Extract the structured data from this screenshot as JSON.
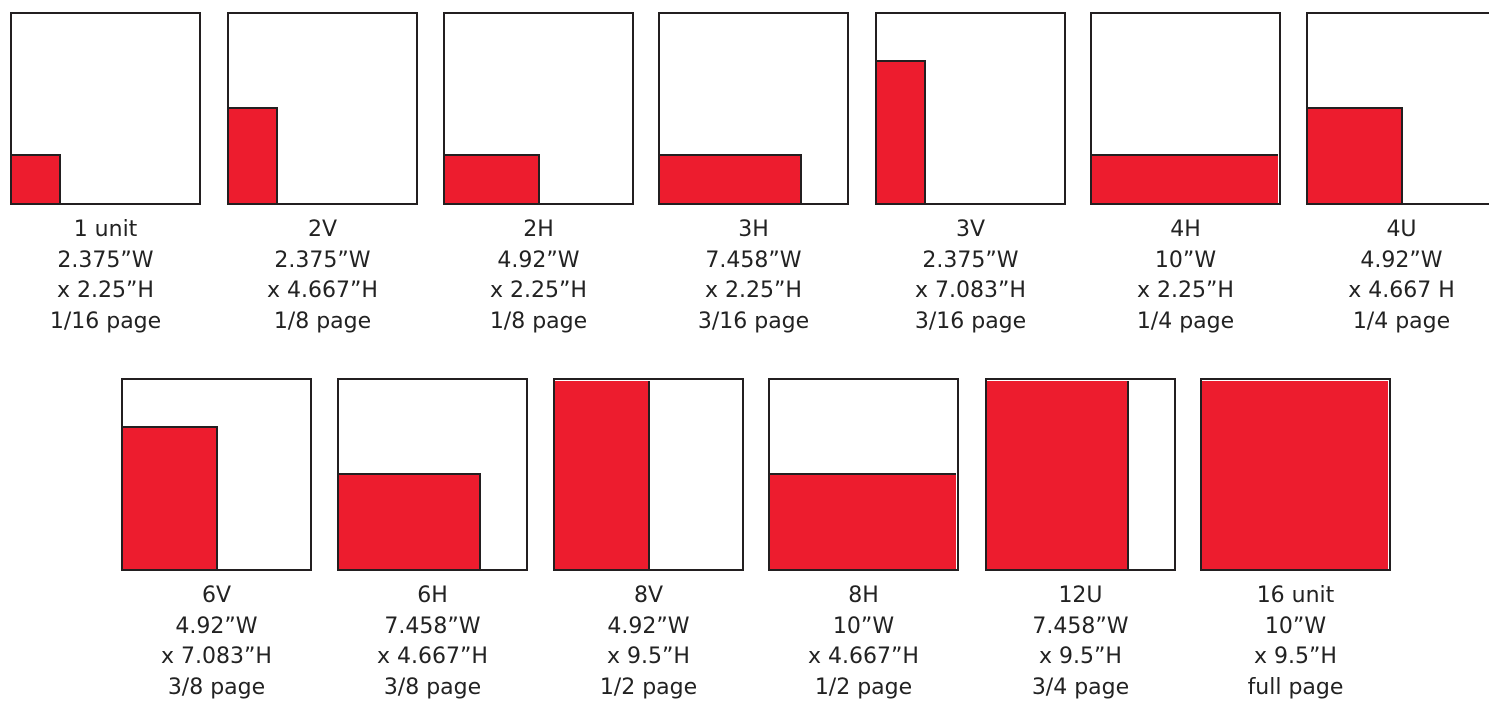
{
  "accent_color": "#ed1c2e",
  "rows": [
    [
      {
        "code": "1 unit",
        "width": "2.375”W",
        "height": "x 2.25”H",
        "fraction": "1/16 page",
        "ad_width_fraction": 0.25,
        "ad_height_fraction": 0.25
      },
      {
        "code": "2V",
        "width": "2.375”W",
        "height": "x 4.667”H",
        "fraction": "1/8 page",
        "ad_width_fraction": 0.25,
        "ad_height_fraction": 0.5
      },
      {
        "code": "2H",
        "width": "4.92”W",
        "height": "x  2.25”H",
        "fraction": "1/8 page",
        "ad_width_fraction": 0.5,
        "ad_height_fraction": 0.25
      },
      {
        "code": "3H",
        "width": "7.458”W",
        "height": "x  2.25”H",
        "fraction": "3/16 page",
        "ad_width_fraction": 0.75,
        "ad_height_fraction": 0.25
      },
      {
        "code": "3V",
        "width": "2.375”W",
        "height": "x  7.083”H",
        "fraction": "3/16 page",
        "ad_width_fraction": 0.25,
        "ad_height_fraction": 0.75
      },
      {
        "code": "4H",
        "width": "10”W",
        "height": "x  2.25”H",
        "fraction": "1/4 page",
        "ad_width_fraction": 1.0,
        "ad_height_fraction": 0.25
      },
      {
        "code": "4U",
        "width": "4.92”W",
        "height": "x 4.667 H",
        "fraction": "1/4 page",
        "ad_width_fraction": 0.5,
        "ad_height_fraction": 0.5
      }
    ],
    [
      {
        "code": "6V",
        "width": "4.92”W",
        "height": "x 7.083”H",
        "fraction": "3/8 page",
        "ad_width_fraction": 0.5,
        "ad_height_fraction": 0.75
      },
      {
        "code": "6H",
        "width": "7.458”W",
        "height": "x  4.667”H",
        "fraction": "3/8 page",
        "ad_width_fraction": 0.75,
        "ad_height_fraction": 0.5
      },
      {
        "code": "8V",
        "width": "4.92”W",
        "height": "x 9.5”H",
        "fraction": "1/2 page",
        "ad_width_fraction": 0.5,
        "ad_height_fraction": 1.0
      },
      {
        "code": "8H",
        "width": "10”W",
        "height": "x  4.667”H",
        "fraction": "1/2 page",
        "ad_width_fraction": 1.0,
        "ad_height_fraction": 0.5
      },
      {
        "code": "12U",
        "width": "7.458”W",
        "height": "x  9.5”H",
        "fraction": "3/4 page",
        "ad_width_fraction": 0.75,
        "ad_height_fraction": 1.0
      },
      {
        "code": "16 unit",
        "width": "10”W",
        "height": "x  9.5”H",
        "fraction": "full page",
        "ad_width_fraction": 1.0,
        "ad_height_fraction": 1.0
      }
    ]
  ]
}
